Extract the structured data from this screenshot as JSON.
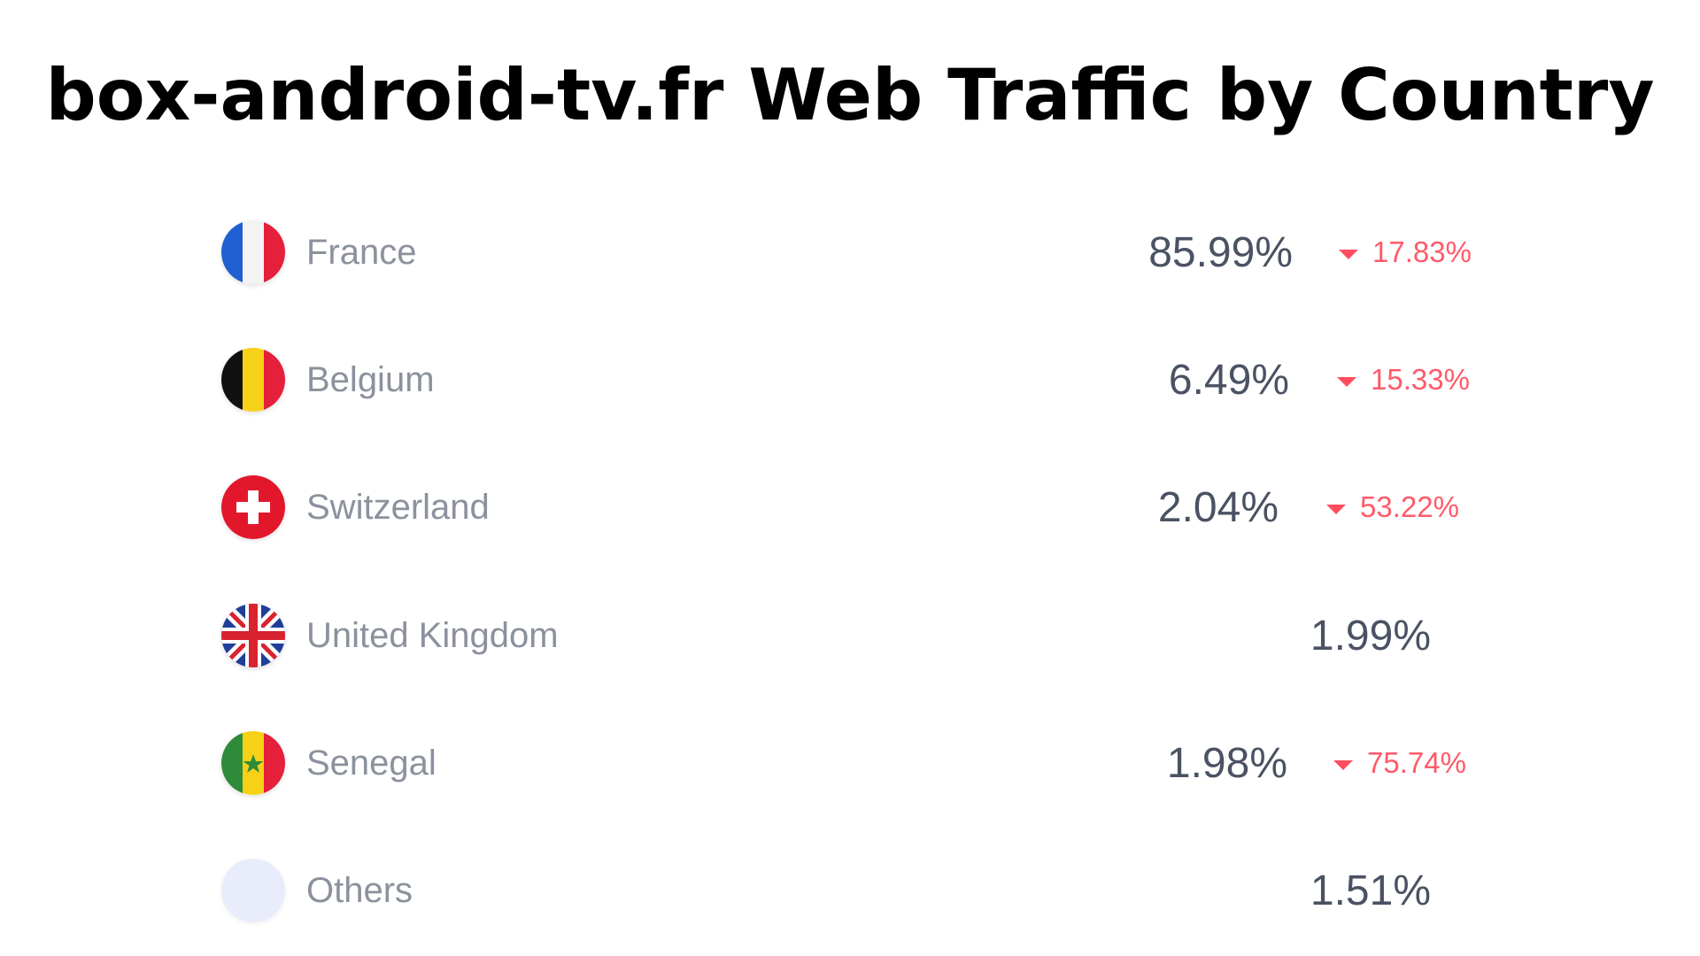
{
  "page": {
    "title": "box-android-tv.fr Web Traffic by Country"
  },
  "chart_data": {
    "type": "table",
    "columns": [
      "country",
      "share",
      "change"
    ],
    "rows": [
      {
        "country": "France",
        "share": "85.99%",
        "change": "17.83%",
        "trend": "down"
      },
      {
        "country": "Belgium",
        "share": "6.49%",
        "change": "15.33%",
        "trend": "down"
      },
      {
        "country": "Switzerland",
        "share": "2.04%",
        "change": "53.22%",
        "trend": "down"
      },
      {
        "country": "United Kingdom",
        "share": "1.99%",
        "change": null,
        "trend": null
      },
      {
        "country": "Senegal",
        "share": "1.98%",
        "change": "75.74%",
        "trend": "down"
      },
      {
        "country": "Others",
        "share": "1.51%",
        "change": null,
        "trend": null
      }
    ]
  },
  "colors": {
    "country_text": "#8b919d",
    "share_text": "#4a5263",
    "negative_change": "#ff5a6a",
    "others_dot": "#e8ecfb"
  },
  "icons": [
    "france-flag-icon",
    "belgium-flag-icon",
    "switzerland-flag-icon",
    "united-kingdom-flag-icon",
    "senegal-flag-icon",
    "others-dot-icon",
    "down-triangle-icon"
  ]
}
